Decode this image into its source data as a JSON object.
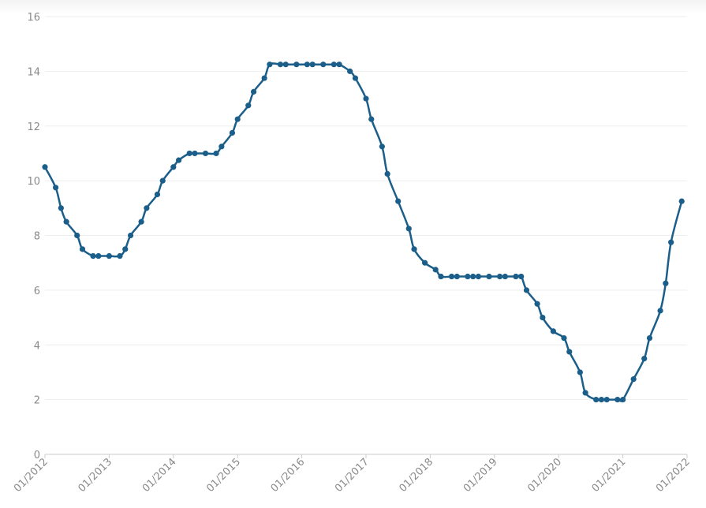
{
  "chart_data": {
    "type": "line",
    "title": "",
    "xlabel": "",
    "ylabel": "",
    "ylim": [
      0,
      16
    ],
    "yticks": [
      0,
      2,
      4,
      6,
      8,
      10,
      12,
      14,
      16
    ],
    "xlim": [
      "2012-01",
      "2022-01"
    ],
    "xticks": [
      "01/2012",
      "01/2013",
      "01/2014",
      "01/2015",
      "01/2016",
      "01/2017",
      "01/2018",
      "01/2019",
      "01/2020",
      "01/2021",
      "01/2022"
    ],
    "grid": "horizontal",
    "legend": "none",
    "line_color": "#1b5e8a",
    "series": [
      {
        "x": [
          "2012-01",
          "2012-03",
          "2012-04",
          "2012-05",
          "2012-07",
          "2012-08",
          "2012-10",
          "2012-11",
          "2013-01",
          "2013-03",
          "2013-04",
          "2013-05",
          "2013-07",
          "2013-08",
          "2013-10",
          "2013-11",
          "2014-01",
          "2014-02",
          "2014-04",
          "2014-05",
          "2014-07",
          "2014-09",
          "2014-10",
          "2014-12",
          "2015-01",
          "2015-03",
          "2015-04",
          "2015-06",
          "2015-07",
          "2015-09",
          "2015-10",
          "2015-12",
          "2016-02",
          "2016-03",
          "2016-05",
          "2016-07",
          "2016-08",
          "2016-10",
          "2016-11",
          "2017-01",
          "2017-02",
          "2017-04",
          "2017-05",
          "2017-07",
          "2017-09",
          "2017-10",
          "2017-12",
          "2018-02",
          "2018-03",
          "2018-05",
          "2018-06",
          "2018-08",
          "2018-09",
          "2018-10",
          "2018-12",
          "2019-02",
          "2019-03",
          "2019-05",
          "2019-06",
          "2019-07",
          "2019-09",
          "2019-10",
          "2019-12",
          "2020-02",
          "2020-03",
          "2020-05",
          "2020-06",
          "2020-08",
          "2020-09",
          "2020-10",
          "2020-12",
          "2021-01",
          "2021-03",
          "2021-05",
          "2021-06",
          "2021-08",
          "2021-09",
          "2021-10",
          "2021-12"
        ],
        "values": [
          10.5,
          9.75,
          9.0,
          8.5,
          8.0,
          7.5,
          7.25,
          7.25,
          7.25,
          7.25,
          7.5,
          8.0,
          8.5,
          9.0,
          9.5,
          10.0,
          10.5,
          10.75,
          11.0,
          11.0,
          11.0,
          11.0,
          11.25,
          11.75,
          12.25,
          12.75,
          13.25,
          13.75,
          14.25,
          14.25,
          14.25,
          14.25,
          14.25,
          14.25,
          14.25,
          14.25,
          14.25,
          14.0,
          13.75,
          13.0,
          12.25,
          11.25,
          10.25,
          9.25,
          8.25,
          7.5,
          7.0,
          6.75,
          6.5,
          6.5,
          6.5,
          6.5,
          6.5,
          6.5,
          6.5,
          6.5,
          6.5,
          6.5,
          6.5,
          6.0,
          5.5,
          5.0,
          4.5,
          4.25,
          3.75,
          3.0,
          2.25,
          2.0,
          2.0,
          2.0,
          2.0,
          2.0,
          2.75,
          3.5,
          4.25,
          5.25,
          6.25,
          7.75,
          9.25
        ]
      }
    ]
  }
}
